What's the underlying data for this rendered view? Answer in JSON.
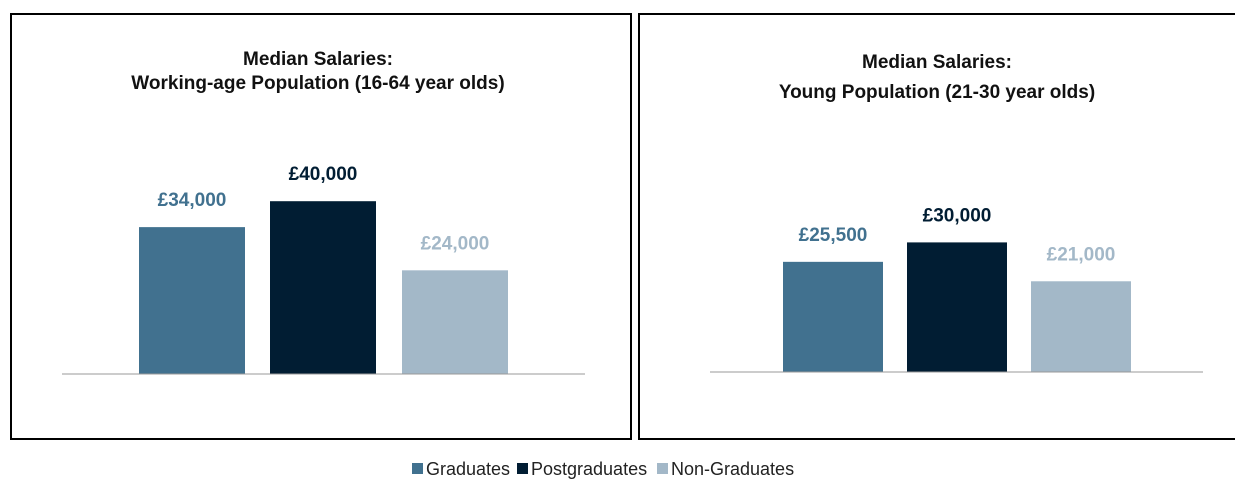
{
  "legend": [
    {
      "name": "Graduates",
      "color": "#41718f"
    },
    {
      "name": "Postgraduates",
      "color": "#011d33"
    },
    {
      "name": "Non-Graduates",
      "color": "#a3b8c8"
    }
  ],
  "chart_data": [
    {
      "type": "bar",
      "title": "Median Salaries:",
      "subtitle": "Working-age Population  (16-64 year olds)",
      "values": [
        34000,
        40000,
        24000
      ],
      "value_labels": [
        "£34,000",
        "£40,000",
        "£24,000"
      ],
      "ylim": [
        0,
        50000
      ]
    },
    {
      "type": "bar",
      "title": "Median Salaries:",
      "subtitle": "Young Population (21-30 year olds)",
      "values": [
        25500,
        30000,
        21000
      ],
      "value_labels": [
        "£25,500",
        "£30,000",
        "£21,000"
      ],
      "ylim": [
        0,
        50000
      ]
    }
  ]
}
